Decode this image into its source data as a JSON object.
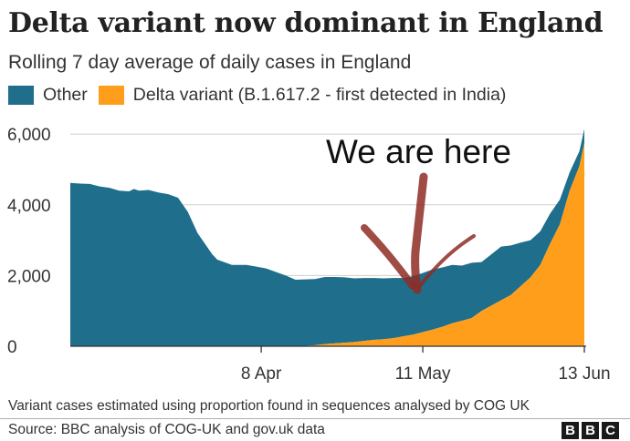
{
  "chart_data": {
    "type": "area",
    "stacked": true,
    "title": "Delta variant now dominant in England",
    "subtitle": "Rolling 7 day average of daily cases in England",
    "x_ticks": [
      {
        "day": 39,
        "label": "8 Apr"
      },
      {
        "day": 72,
        "label": "11 May"
      },
      {
        "day": 105,
        "label": "13 Jun"
      }
    ],
    "y_ticks": [
      0,
      2000,
      4000,
      6000
    ],
    "y_tick_labels": [
      "0",
      "2,000",
      "4,000",
      "6,000"
    ],
    "xlim": [
      0,
      105
    ],
    "ylim": [
      0,
      6700
    ],
    "legend_position": "top-left",
    "series": [
      {
        "name": "Other",
        "color": "#1e6e8c",
        "x": [
          0,
          2,
          4,
          6,
          8,
          10,
          12,
          13,
          14,
          16,
          18,
          20,
          22,
          24,
          25,
          26,
          27,
          28,
          29,
          30,
          31,
          32,
          33,
          34,
          36,
          38,
          40,
          42,
          44,
          46,
          48,
          50,
          52,
          54,
          56,
          58,
          60,
          62,
          64,
          66,
          68,
          70,
          72,
          74,
          76,
          78,
          80,
          82,
          84,
          86,
          88,
          90,
          92,
          94,
          96,
          98,
          100,
          102,
          104,
          105
        ],
        "values": [
          4620,
          4600,
          4590,
          4520,
          4480,
          4400,
          4380,
          4450,
          4400,
          4420,
          4350,
          4300,
          4200,
          3800,
          3500,
          3200,
          3000,
          2800,
          2600,
          2450,
          2400,
          2350,
          2300,
          2300,
          2300,
          2250,
          2200,
          2100,
          2000,
          1880,
          1880,
          1870,
          1900,
          1880,
          1850,
          1800,
          1780,
          1750,
          1720,
          1700,
          1650,
          1650,
          1670,
          1700,
          1680,
          1650,
          1560,
          1560,
          1380,
          1450,
          1520,
          1400,
          1230,
          1050,
          950,
          850,
          700,
          520,
          420,
          400
        ]
      },
      {
        "name": "Delta variant (B.1.617.2 - first detected in India)",
        "color": "#ff9e1b",
        "x": [
          0,
          38,
          40,
          42,
          44,
          46,
          48,
          50,
          52,
          54,
          56,
          58,
          60,
          62,
          64,
          66,
          68,
          70,
          72,
          74,
          76,
          78,
          80,
          82,
          84,
          86,
          88,
          90,
          92,
          94,
          96,
          98,
          100,
          102,
          104,
          105
        ],
        "values": [
          0,
          0,
          0,
          0,
          0,
          0,
          10,
          30,
          60,
          80,
          100,
          120,
          150,
          180,
          200,
          230,
          280,
          330,
          400,
          470,
          550,
          650,
          720,
          800,
          1000,
          1150,
          1300,
          1450,
          1700,
          1950,
          2300,
          2900,
          3450,
          4400,
          5100,
          5750
        ]
      }
    ]
  },
  "annotation": "We are here",
  "footnote": "Variant cases estimated using proportion found in sequences analysed by COG UK",
  "source": "Source: BBC analysis of COG-UK and gov.uk data",
  "logo_letters": [
    "B",
    "B",
    "C"
  ]
}
